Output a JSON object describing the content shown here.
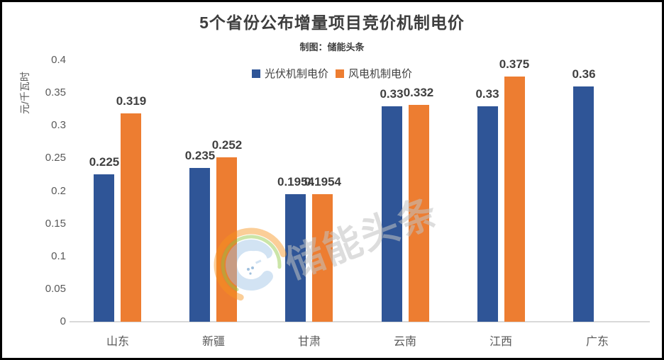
{
  "title": "5个省份公布增量项目竞价机制电价",
  "subtitle": "制图：储能头条",
  "watermark": {
    "text": "储能头条",
    "logo": "storage-headlines-logo"
  },
  "colors": {
    "pv_blue": "#2F5597",
    "wind_orange": "#ED7D31",
    "axis_text": "#595959",
    "baseline": "#D9D9D9",
    "title_text": "#3D3D3D",
    "frame_border": "#000000"
  },
  "chart_data": {
    "type": "bar",
    "title": "5个省份公布增量项目竞价机制电价",
    "subtitle": "制图：储能头条",
    "xlabel": "",
    "ylabel": "元/千瓦时",
    "ylim": [
      0,
      0.4
    ],
    "yticks": [
      "0",
      "0.05",
      "0.1",
      "0.15",
      "0.2",
      "0.25",
      "0.3",
      "0.35",
      "0.4"
    ],
    "grid": false,
    "legend_position": "top",
    "categories": [
      "山东",
      "新疆",
      "甘肃",
      "云南",
      "江西",
      "广东"
    ],
    "series": [
      {
        "name": "光伏机制电价",
        "color": "#2F5597",
        "values": [
          0.225,
          0.235,
          0.1954,
          0.33,
          0.33,
          0.36
        ],
        "labels": [
          "0.225",
          "0.235",
          "0.1954",
          "0.33",
          "0.33",
          "0.36"
        ]
      },
      {
        "name": "风电机制电价",
        "color": "#ED7D31",
        "values": [
          0.319,
          0.252,
          0.1954,
          0.332,
          0.375,
          null
        ],
        "labels": [
          "0.319",
          "0.252",
          "0.1954",
          "0.332",
          "0.375",
          null
        ]
      }
    ]
  }
}
